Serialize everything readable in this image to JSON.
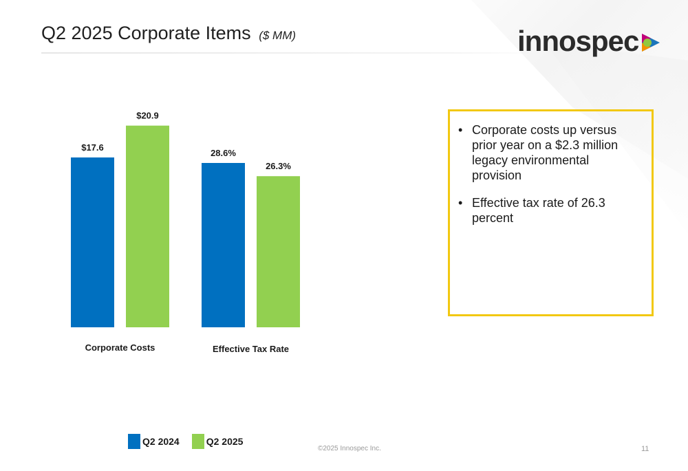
{
  "slide": {
    "title": "Q2 2025 Corporate Items",
    "title_unit": "($ MM)",
    "logo_text": "innospec",
    "footer_copyright": "©2025 Innospec Inc.",
    "page_number": "11"
  },
  "callout": {
    "bullets": [
      "Corporate costs up versus prior year on a $2.3 million legacy environmental provision",
      "Effective tax rate of 26.3 percent"
    ]
  },
  "colors": {
    "q2_2024": "#0070c0",
    "q2_2025": "#92d050",
    "callout_border": "#f2c811"
  },
  "chart_data": {
    "type": "bar",
    "categories": [
      "Corporate Costs",
      "Effective Tax Rate"
    ],
    "series": [
      {
        "name": "Q2 2024",
        "values": [
          17.6,
          28.6
        ],
        "labels": [
          "$17.6",
          "28.6%"
        ]
      },
      {
        "name": "Q2 2025",
        "values": [
          20.9,
          26.3
        ],
        "labels": [
          "$20.9",
          "26.3%"
        ]
      }
    ],
    "grid": false,
    "legend": "bottom-left"
  }
}
